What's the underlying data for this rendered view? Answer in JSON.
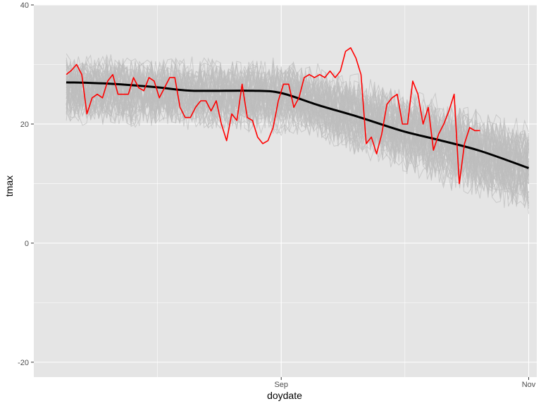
{
  "chart_data": {
    "type": "line",
    "title": "",
    "xlabel": "doydate",
    "ylabel": "tmax",
    "x_ticks": [
      {
        "date": "2018-09-01",
        "label": "Sep"
      },
      {
        "date": "2018-11-01",
        "label": "Nov"
      }
    ],
    "y_ticks": [
      -20,
      0,
      20,
      40
    ],
    "xlim": [
      "2018-07-02",
      "2018-11-03"
    ],
    "ylim": [
      -22.5,
      40
    ],
    "grid": true,
    "legend": "none",
    "background": "#e5e5e5",
    "gridline_color": "#ffffff",
    "series": [
      {
        "role": "highlighted-year",
        "color": "#ff0000",
        "x_start": "2018-07-10",
        "x_end": "2018-10-20",
        "values": [
          28.3,
          29.0,
          30.0,
          28.3,
          21.7,
          24.4,
          25.0,
          24.4,
          27.2,
          28.3,
          25.0,
          25.0,
          25.0,
          27.8,
          26.1,
          25.6,
          27.8,
          27.2,
          24.4,
          26.1,
          27.8,
          27.8,
          22.8,
          21.1,
          21.1,
          22.8,
          23.9,
          23.9,
          22.2,
          23.9,
          20.0,
          17.2,
          21.7,
          20.6,
          26.7,
          21.1,
          20.6,
          17.8,
          16.7,
          17.2,
          19.4,
          23.9,
          26.7,
          26.7,
          22.8,
          24.4,
          27.8,
          28.3,
          27.8,
          28.3,
          27.8,
          28.9,
          27.8,
          28.9,
          32.2,
          32.8,
          31.1,
          28.3,
          16.7,
          17.8,
          15.0,
          18.3,
          23.3,
          24.4,
          25.0,
          20.0,
          20.0,
          27.2,
          25.0,
          20.0,
          22.8,
          15.6,
          18.3,
          20.0,
          22.2,
          25.0,
          10.0,
          16.7,
          19.4,
          18.9,
          18.9
        ]
      },
      {
        "role": "smooth-trend",
        "color": "#000000",
        "x": [
          "2018-07-10",
          "2018-07-20",
          "2018-08-01",
          "2018-08-10",
          "2018-08-25",
          "2018-09-01",
          "2018-09-10",
          "2018-09-20",
          "2018-10-01",
          "2018-10-10",
          "2018-10-20",
          "2018-11-01"
        ],
        "values": [
          27.0,
          26.8,
          26.2,
          25.6,
          25.6,
          25.2,
          23.2,
          21.2,
          18.8,
          17.3,
          15.5,
          12.6
        ]
      }
    ],
    "background_series": {
      "color": "#bdbdbd",
      "count": 60,
      "x_start": "2018-07-10",
      "x_end": "2018-11-01",
      "band_start": [
        19,
        33
      ],
      "band_mid": [
        17,
        32
      ],
      "band_end": [
        3,
        22
      ]
    }
  }
}
